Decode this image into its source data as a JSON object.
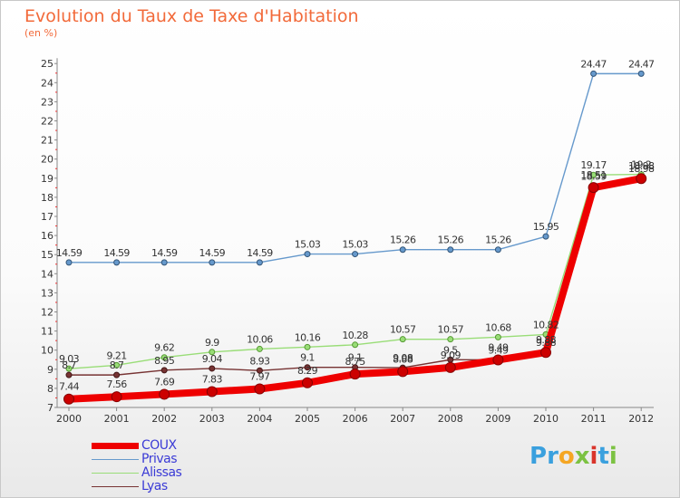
{
  "header": {
    "title": "Evolution du Taux de Taxe d'Habitation",
    "unit": "(en %)"
  },
  "chart_data": {
    "type": "line",
    "title": "Evolution du Taux de Taxe d'Habitation",
    "ylabel": "(en %)",
    "xlabel": "",
    "x": [
      "2000",
      "2001",
      "2002",
      "2003",
      "2004",
      "2005",
      "2006",
      "2007",
      "2008",
      "2009",
      "2010",
      "2011",
      "2012"
    ],
    "ylim": [
      7,
      25
    ],
    "yticks": [
      7,
      8,
      9,
      10,
      11,
      12,
      13,
      14,
      15,
      16,
      17,
      18,
      19,
      20,
      21,
      22,
      23,
      24,
      25
    ],
    "grid": false,
    "legend_position": "bottom-left",
    "series": [
      {
        "name": "COUX",
        "color": "#ee0000",
        "values": [
          7.44,
          7.56,
          7.69,
          7.83,
          7.97,
          8.29,
          8.75,
          8.88,
          9.09,
          9.49,
          9.88,
          18.51,
          18.98
        ],
        "labels": [
          "7.44",
          "7.56",
          "7.69",
          "7.83",
          "7.97",
          "8.29",
          "8.75",
          "8.88",
          "9.09",
          "9.49",
          "9.88",
          "18.51",
          "18.98"
        ]
      },
      {
        "name": "Privas",
        "color": "#6699cc",
        "values": [
          14.59,
          14.59,
          14.59,
          14.59,
          14.59,
          15.03,
          15.03,
          15.26,
          15.26,
          15.26,
          15.95,
          24.47,
          24.47
        ],
        "labels": [
          "14.59",
          "14.59",
          "14.59",
          "14.59",
          "14.59",
          "15.03",
          "15.03",
          "15.26",
          "15.26",
          "15.26",
          "15.95",
          "24.47",
          "24.47"
        ]
      },
      {
        "name": "Alissas",
        "color": "#99dd77",
        "values": [
          9.03,
          9.21,
          9.62,
          9.9,
          10.06,
          10.16,
          10.28,
          10.57,
          10.57,
          10.68,
          10.82,
          19.17,
          19.2
        ],
        "labels": [
          "9.03",
          "9.21",
          "9.62",
          "9.9",
          "10.06",
          "10.16",
          "10.28",
          "10.57",
          "10.57",
          "10.68",
          "10.82",
          "19.17",
          "19.2"
        ]
      },
      {
        "name": "Lyas",
        "color": "#773333",
        "values": [
          8.7,
          8.7,
          8.95,
          9.04,
          8.93,
          9.1,
          9.1,
          9.08,
          9.5,
          9.49,
          9.88,
          18.59,
          18.98
        ],
        "labels": [
          "8.7",
          "8.7",
          "8.95",
          "9.04",
          "8.93",
          "9.1",
          "9.1",
          "9.08",
          "9.5",
          "9.49",
          "9.88",
          "18.59",
          "18.98"
        ]
      }
    ]
  },
  "legend": {
    "items": [
      {
        "label": "COUX",
        "color": "#ee0000",
        "thickness": 7
      },
      {
        "label": "Privas",
        "color": "#6699cc",
        "thickness": 1
      },
      {
        "label": "Alissas",
        "color": "#99dd77",
        "thickness": 1
      },
      {
        "label": "Lyas",
        "color": "#773333",
        "thickness": 1
      }
    ]
  },
  "logo": {
    "letters": [
      "P",
      "r",
      "o",
      "x",
      "i",
      "t",
      "i"
    ],
    "colors": [
      "#3aa0de",
      "#3aa0de",
      "#f5a623",
      "#7cc242",
      "#d9342b",
      "#3aa0de",
      "#7cc242"
    ]
  }
}
